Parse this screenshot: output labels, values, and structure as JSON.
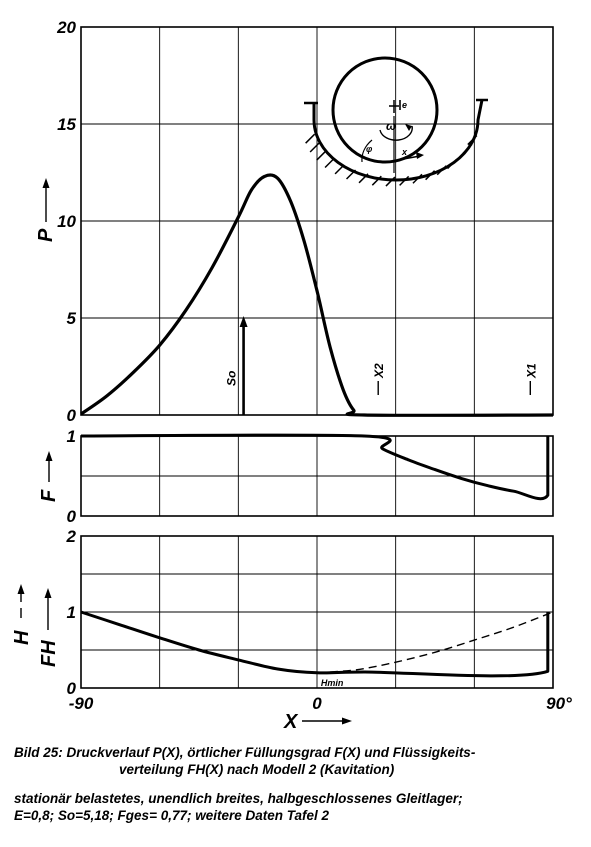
{
  "chart_data": [
    {
      "type": "line",
      "panel": "P",
      "xlim": [
        -90,
        90
      ],
      "ylim": [
        0,
        20
      ],
      "yticks": [
        "0",
        "5",
        "10",
        "15",
        "20"
      ],
      "ylabel": "P",
      "grid": true,
      "series": [
        {
          "points": [
            [
              -90,
              0.05
            ],
            [
              -80,
              1.0
            ],
            [
              -70,
              2.2
            ],
            [
              -60,
              3.6
            ],
            [
              -50,
              5.4
            ],
            [
              -40,
              7.6
            ],
            [
              -30,
              10.2
            ],
            [
              -25,
              11.6
            ],
            [
              -20,
              12.3
            ],
            [
              -15,
              12.2
            ],
            [
              -10,
              11.0
            ],
            [
              -5,
              9.0
            ],
            [
              0,
              6.4
            ],
            [
              5,
              3.5
            ],
            [
              10,
              1.3
            ],
            [
              14,
              0.25
            ],
            [
              18,
              0.0
            ],
            [
              90,
              0.0
            ]
          ]
        }
      ],
      "annotations": [
        {
          "text": "So",
          "x": -28,
          "arrow_to": 5.1
        },
        {
          "text": "X2",
          "x": 18
        },
        {
          "text": "X1",
          "x": 90
        }
      ]
    },
    {
      "type": "line",
      "panel": "F",
      "xlim": [
        -90,
        90
      ],
      "ylim": [
        0,
        1
      ],
      "yticks": [
        "0",
        "1"
      ],
      "ylabel": "F",
      "grid": true,
      "series": [
        {
          "points": [
            [
              -90,
              1
            ],
            [
              18,
              1
            ],
            [
              25,
              0.84
            ],
            [
              35,
              0.7
            ],
            [
              45,
              0.58
            ],
            [
              55,
              0.47
            ],
            [
              65,
              0.38
            ],
            [
              75,
              0.31
            ],
            [
              88,
              0.26
            ],
            [
              88,
              1
            ]
          ]
        }
      ]
    },
    {
      "type": "line",
      "panel": "H/FH",
      "xlim": [
        -90,
        90
      ],
      "ylim": [
        0,
        2
      ],
      "yticks": [
        "0",
        "1",
        "2"
      ],
      "xticks": [
        "-90",
        "0",
        "90°"
      ],
      "xlabel": "X",
      "ylabel_top": "H",
      "ylabel_bottom": "FH",
      "grid": true,
      "series": [
        {
          "style": "solid",
          "points": [
            [
              -90,
              1
            ],
            [
              -75,
              0.83
            ],
            [
              -60,
              0.66
            ],
            [
              -45,
              0.5
            ],
            [
              -30,
              0.37
            ],
            [
              -15,
              0.25
            ],
            [
              0,
              0.2
            ],
            [
              18,
              0.21
            ],
            [
              88,
              0.22
            ],
            [
              88,
              1
            ]
          ]
        },
        {
          "style": "dashed",
          "points": [
            [
              0,
              0.2
            ],
            [
              15,
              0.24
            ],
            [
              30,
              0.34
            ],
            [
              45,
              0.47
            ],
            [
              60,
              0.63
            ],
            [
              75,
              0.8
            ],
            [
              90,
              1
            ]
          ]
        }
      ],
      "annotations": [
        {
          "text": "Hmin",
          "x": 3
        }
      ]
    }
  ],
  "inset": {
    "labels": {
      "e": "e",
      "omega": "ω",
      "phi": "φ",
      "x": "x"
    }
  },
  "caption": {
    "line1": "Bild 25: Druckverlauf P(X), örtlicher Füllungsgrad F(X) und Flüssigkeits-",
    "line2": "verteilung FH(X) nach Modell 2 (Kavitation)",
    "line3": "stationär belastetes, unendlich breites, halbgeschlossenes Gleitlager;",
    "line4": "E=0,8; So=5,18; Fges= 0,77; weitere Daten Tafel 2"
  }
}
